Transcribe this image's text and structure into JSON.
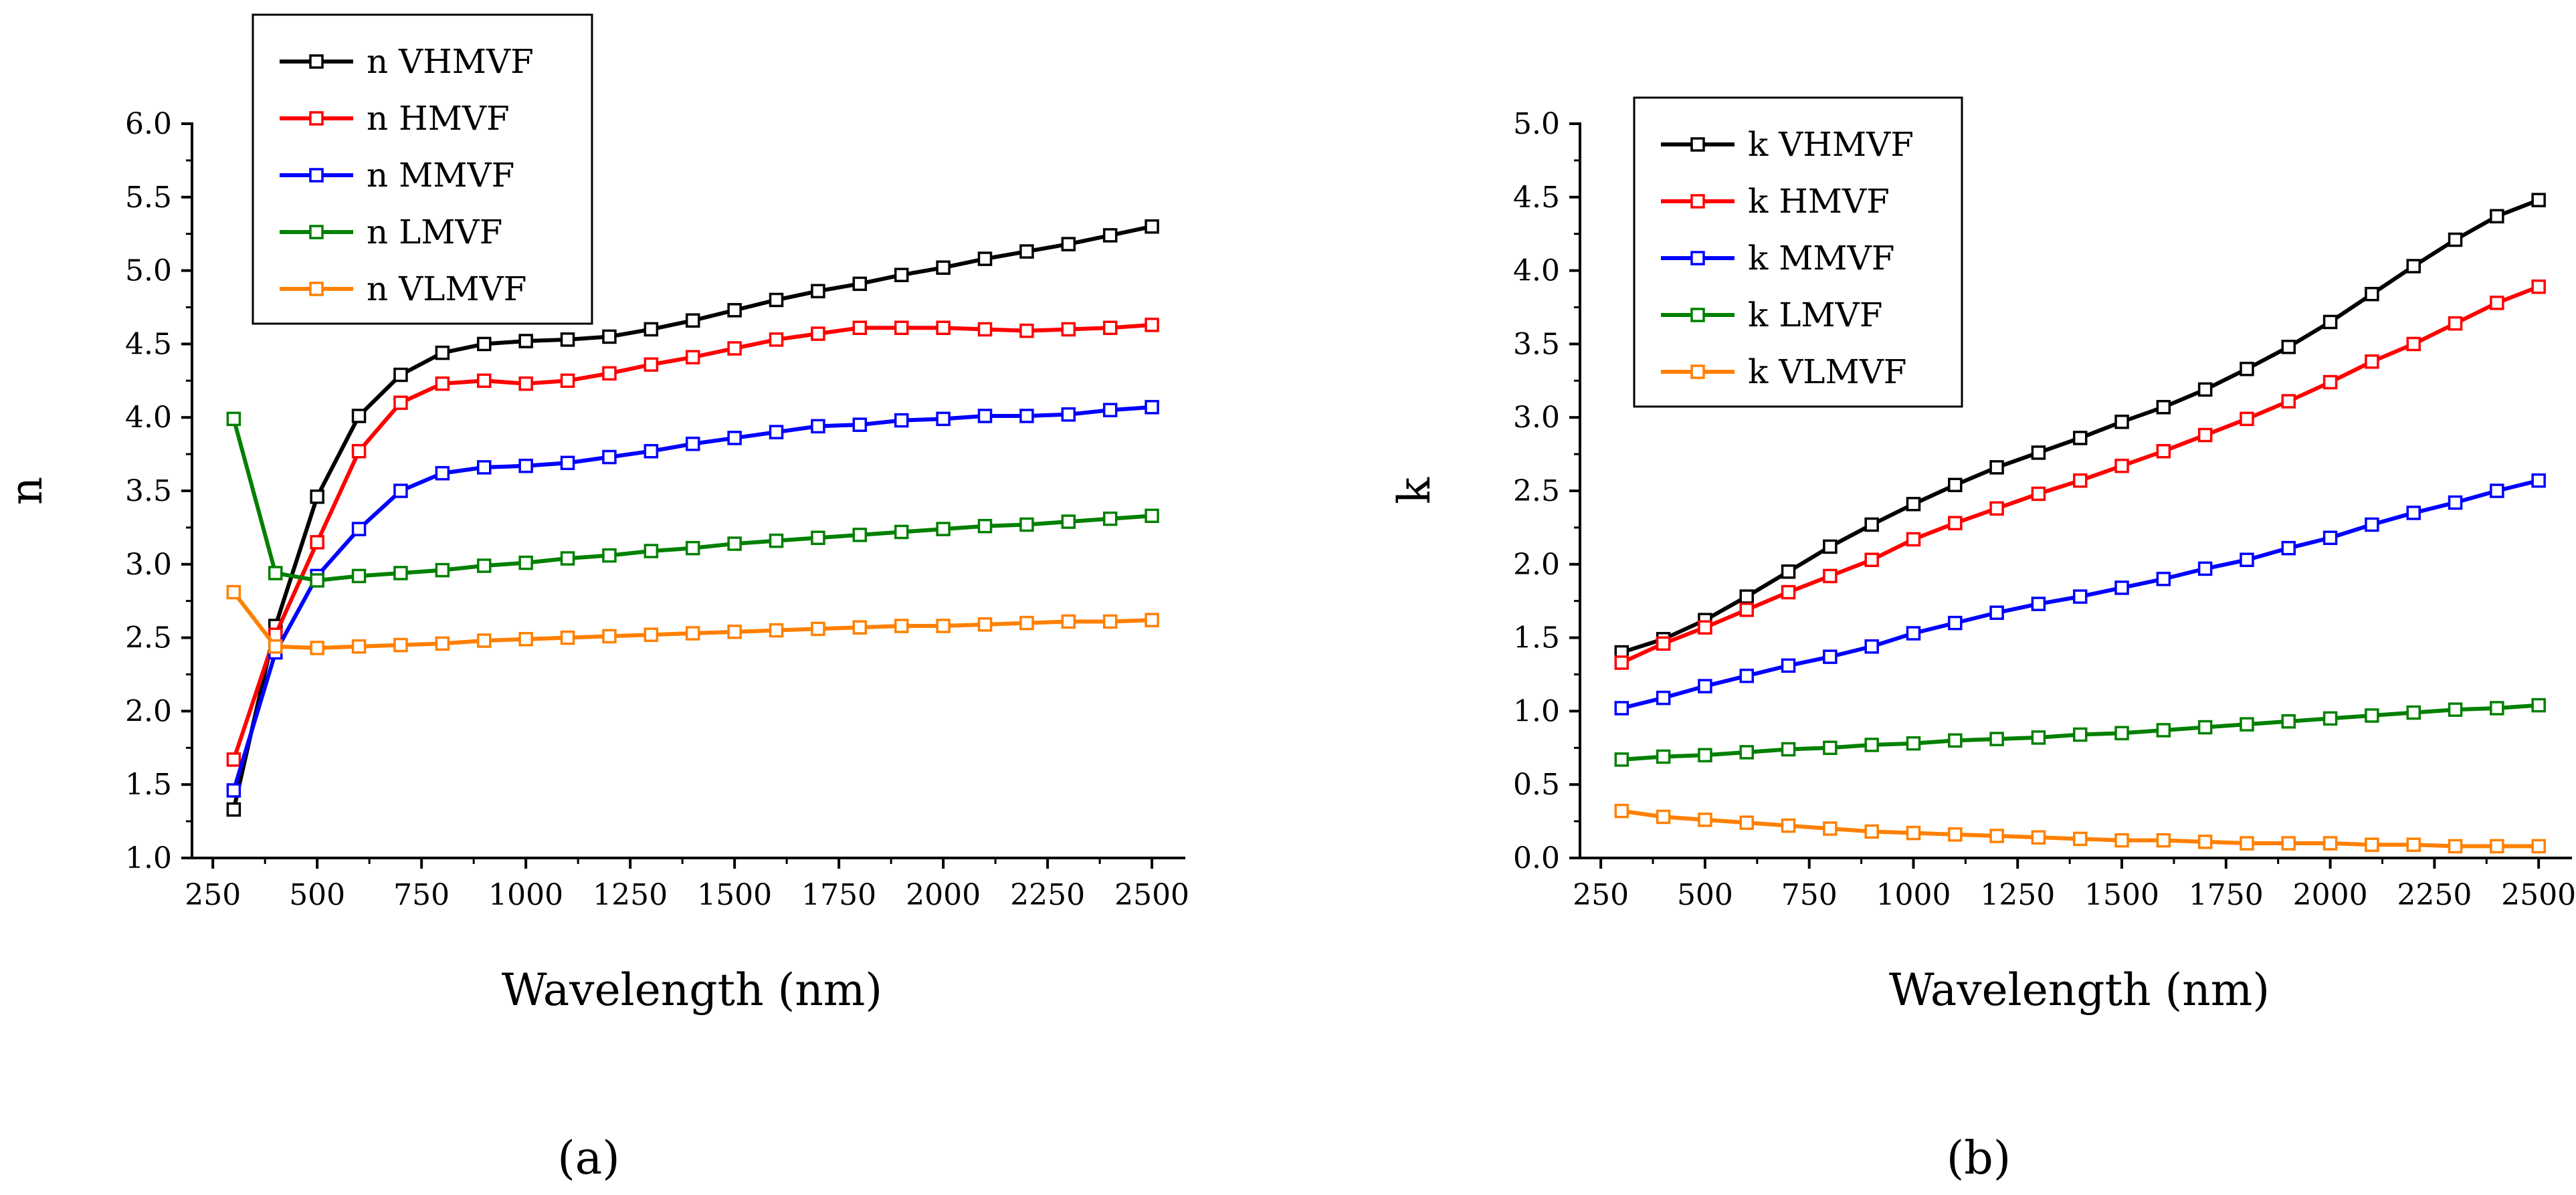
{
  "chart_data": [
    {
      "type": "line",
      "panel": "a",
      "xlabel": "Wavelength (nm)",
      "ylabel": "n",
      "xlim": [
        200,
        2580
      ],
      "ylim": [
        1.0,
        6.0
      ],
      "xticks": [
        250,
        500,
        750,
        1000,
        1250,
        1500,
        1750,
        2000,
        2250,
        2500
      ],
      "yticks": [
        1.0,
        1.5,
        2.0,
        2.5,
        3.0,
        3.5,
        4.0,
        4.5,
        5.0,
        5.5,
        6.0
      ],
      "xtick_labels": [
        "250",
        "500",
        "750",
        "1000",
        "1250",
        "1500",
        "1750",
        "2000",
        "2250",
        "2500"
      ],
      "ytick_labels": [
        "1.0",
        "1.5",
        "2.0",
        "2.5",
        "3.0",
        "3.5",
        "4.0",
        "4.5",
        "5.0",
        "5.5",
        "6.0"
      ],
      "legend_position": "top-left",
      "x": [
        300,
        400,
        500,
        600,
        700,
        800,
        900,
        1000,
        1100,
        1200,
        1300,
        1400,
        1500,
        1600,
        1700,
        1800,
        1900,
        2000,
        2100,
        2200,
        2300,
        2400,
        2500
      ],
      "series": [
        {
          "name": "n VHMVF",
          "color": "#000000",
          "values": [
            1.33,
            2.58,
            3.46,
            4.01,
            4.29,
            4.44,
            4.5,
            4.52,
            4.53,
            4.55,
            4.6,
            4.66,
            4.73,
            4.8,
            4.86,
            4.91,
            4.97,
            5.02,
            5.08,
            5.13,
            5.18,
            5.24,
            5.3
          ]
        },
        {
          "name": "n HMVF",
          "color": "#ff0000",
          "values": [
            1.67,
            2.52,
            3.15,
            3.77,
            4.1,
            4.23,
            4.25,
            4.23,
            4.25,
            4.3,
            4.36,
            4.41,
            4.47,
            4.53,
            4.57,
            4.61,
            4.61,
            4.61,
            4.6,
            4.59,
            4.6,
            4.61,
            4.63
          ]
        },
        {
          "name": "n MMVF",
          "color": "#0000ff",
          "values": [
            1.46,
            2.4,
            2.92,
            3.24,
            3.5,
            3.62,
            3.66,
            3.67,
            3.69,
            3.73,
            3.77,
            3.82,
            3.86,
            3.9,
            3.94,
            3.95,
            3.98,
            3.99,
            4.01,
            4.01,
            4.02,
            4.05,
            4.07
          ]
        },
        {
          "name": "n LMVF",
          "color": "#008000",
          "values": [
            3.99,
            2.94,
            2.89,
            2.92,
            2.94,
            2.96,
            2.99,
            3.01,
            3.04,
            3.06,
            3.09,
            3.11,
            3.14,
            3.16,
            3.18,
            3.2,
            3.22,
            3.24,
            3.26,
            3.27,
            3.29,
            3.31,
            3.33
          ]
        },
        {
          "name": "n VLMVF",
          "color": "#ff8000",
          "values": [
            2.81,
            2.44,
            2.43,
            2.44,
            2.45,
            2.46,
            2.48,
            2.49,
            2.5,
            2.51,
            2.52,
            2.53,
            2.54,
            2.55,
            2.56,
            2.57,
            2.58,
            2.58,
            2.59,
            2.6,
            2.61,
            2.61,
            2.62
          ]
        }
      ]
    },
    {
      "type": "line",
      "panel": "b",
      "xlabel": "Wavelength (nm)",
      "ylabel": "k",
      "xlim": [
        200,
        2580
      ],
      "ylim": [
        0.0,
        5.0
      ],
      "xticks": [
        250,
        500,
        750,
        1000,
        1250,
        1500,
        1750,
        2000,
        2250,
        2500
      ],
      "yticks": [
        0.0,
        0.5,
        1.0,
        1.5,
        2.0,
        2.5,
        3.0,
        3.5,
        4.0,
        4.5,
        5.0
      ],
      "xtick_labels": [
        "250",
        "500",
        "750",
        "1000",
        "1250",
        "1500",
        "1750",
        "2000",
        "2250",
        "2500"
      ],
      "ytick_labels": [
        "0.0",
        "0.5",
        "1.0",
        "1.5",
        "2.0",
        "2.5",
        "3.0",
        "3.5",
        "4.0",
        "4.5",
        "5.0"
      ],
      "legend_position": "top-left",
      "x": [
        300,
        400,
        500,
        600,
        700,
        800,
        900,
        1000,
        1100,
        1200,
        1300,
        1400,
        1500,
        1600,
        1700,
        1800,
        1900,
        2000,
        2100,
        2200,
        2300,
        2400,
        2500
      ],
      "series": [
        {
          "name": "k VHMVF",
          "color": "#000000",
          "values": [
            1.4,
            1.49,
            1.62,
            1.78,
            1.95,
            2.12,
            2.27,
            2.41,
            2.54,
            2.66,
            2.76,
            2.86,
            2.97,
            3.07,
            3.19,
            3.33,
            3.48,
            3.65,
            3.84,
            4.03,
            4.21,
            4.37,
            4.48
          ]
        },
        {
          "name": "k HMVF",
          "color": "#ff0000",
          "values": [
            1.33,
            1.46,
            1.57,
            1.69,
            1.81,
            1.92,
            2.03,
            2.17,
            2.28,
            2.38,
            2.48,
            2.57,
            2.67,
            2.77,
            2.88,
            2.99,
            3.11,
            3.24,
            3.38,
            3.5,
            3.64,
            3.78,
            3.89
          ]
        },
        {
          "name": "k MMVF",
          "color": "#0000ff",
          "values": [
            1.02,
            1.09,
            1.17,
            1.24,
            1.31,
            1.37,
            1.44,
            1.53,
            1.6,
            1.67,
            1.73,
            1.78,
            1.84,
            1.9,
            1.97,
            2.03,
            2.11,
            2.18,
            2.27,
            2.35,
            2.42,
            2.5,
            2.57
          ]
        },
        {
          "name": "k LMVF",
          "color": "#008000",
          "values": [
            0.67,
            0.69,
            0.7,
            0.72,
            0.74,
            0.75,
            0.77,
            0.78,
            0.8,
            0.81,
            0.82,
            0.84,
            0.85,
            0.87,
            0.89,
            0.91,
            0.93,
            0.95,
            0.97,
            0.99,
            1.01,
            1.02,
            1.04
          ]
        },
        {
          "name": "k VLMVF",
          "color": "#ff8000",
          "values": [
            0.32,
            0.28,
            0.26,
            0.24,
            0.22,
            0.2,
            0.18,
            0.17,
            0.16,
            0.15,
            0.14,
            0.13,
            0.12,
            0.12,
            0.11,
            0.1,
            0.1,
            0.1,
            0.09,
            0.09,
            0.08,
            0.08,
            0.08
          ]
        }
      ]
    }
  ],
  "panel_labels": [
    "(a)",
    "(b)"
  ]
}
